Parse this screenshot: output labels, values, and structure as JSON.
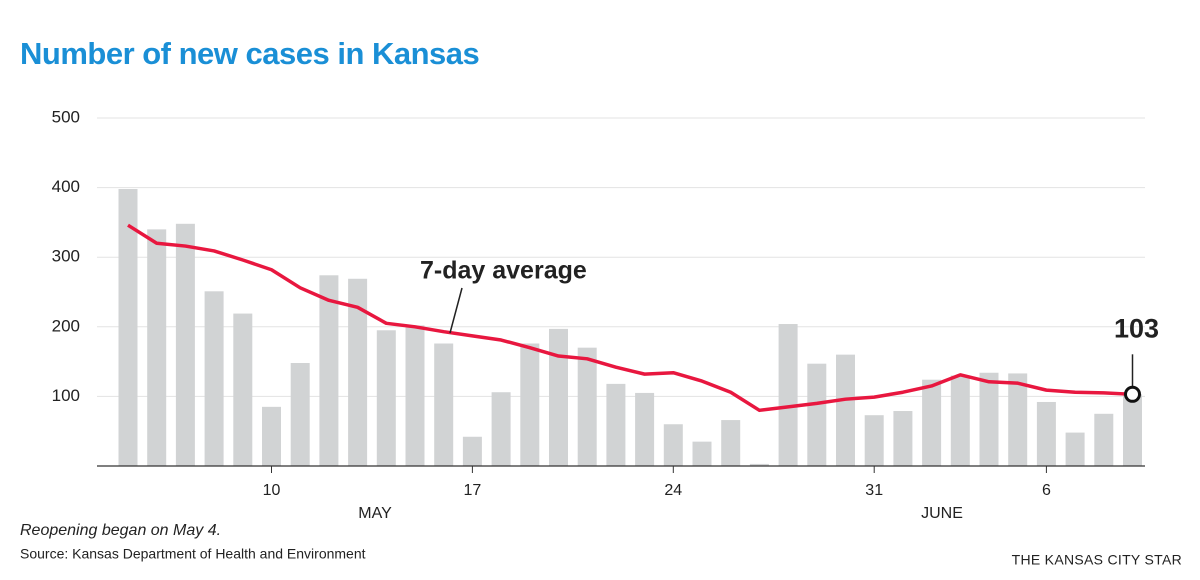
{
  "chart_data": {
    "type": "bar",
    "title": "Number of new cases in Kansas",
    "categories": [
      null,
      null,
      null,
      null,
      null,
      "10",
      null,
      null,
      null,
      null,
      null,
      null,
      "17",
      null,
      null,
      null,
      null,
      null,
      null,
      "24",
      null,
      null,
      null,
      null,
      null,
      null,
      "31",
      null,
      null,
      null,
      null,
      null,
      "6",
      null,
      null,
      null
    ],
    "months": [
      "MAY",
      "JUNE"
    ],
    "series": [
      {
        "name": "New cases",
        "type": "bar",
        "color": "#d1d3d4",
        "values": [
          398,
          340,
          348,
          251,
          219,
          85,
          148,
          274,
          269,
          195,
          202,
          176,
          42,
          106,
          176,
          197,
          170,
          118,
          105,
          60,
          35,
          66,
          3,
          204,
          147,
          160,
          73,
          79,
          124,
          130,
          134,
          133,
          92,
          48,
          75,
          103
        ]
      },
      {
        "name": "7-day average",
        "type": "line",
        "color": "#e8173f",
        "values": [
          346,
          320,
          316,
          309,
          296,
          282,
          256,
          238,
          228,
          205,
          200,
          193,
          187,
          181,
          170,
          158,
          154,
          142,
          132,
          134,
          122,
          106,
          80,
          85,
          90,
          96,
          99,
          106,
          115,
          131,
          121,
          119,
          109,
          106,
          105,
          103
        ]
      }
    ],
    "ylim": [
      0,
      500
    ],
    "yticks": [
      100,
      200,
      300,
      400,
      500
    ],
    "grid": true,
    "note": "Reopening began on May 4.",
    "source": "Source: Kansas Department of Health and Environment",
    "credit": "THE KANSAS CITY STAR"
  }
}
